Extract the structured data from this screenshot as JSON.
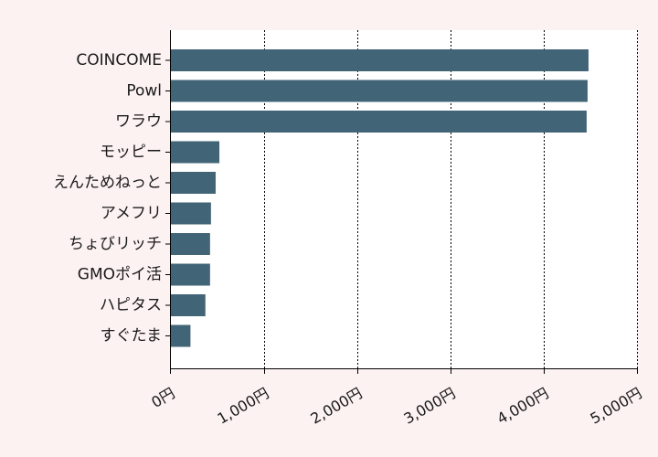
{
  "chart_data": {
    "type": "bar",
    "orientation": "horizontal",
    "categories": [
      "COINCOME",
      "Powl",
      "ワラウ",
      "モッピー",
      "えんためねっと",
      "アメフリ",
      "ちょびリッチ",
      "GMOポイ活",
      "ハピタス",
      "すぐたま"
    ],
    "values": [
      4480,
      4470,
      4460,
      520,
      480,
      430,
      420,
      420,
      370,
      210
    ],
    "xlim": [
      0,
      5000
    ],
    "x_ticks": [
      0,
      1000,
      2000,
      3000,
      4000,
      5000
    ],
    "x_tick_labels": [
      "0円",
      "1,000円",
      "2,000円",
      "3,000円",
      "4,000円",
      "5,000円"
    ],
    "grid": "vertical dotted",
    "title": "",
    "xlabel": "",
    "ylabel": "",
    "bar_color": "#426477",
    "plot_background": "#ffffff",
    "page_background": "#fdf2f2"
  }
}
